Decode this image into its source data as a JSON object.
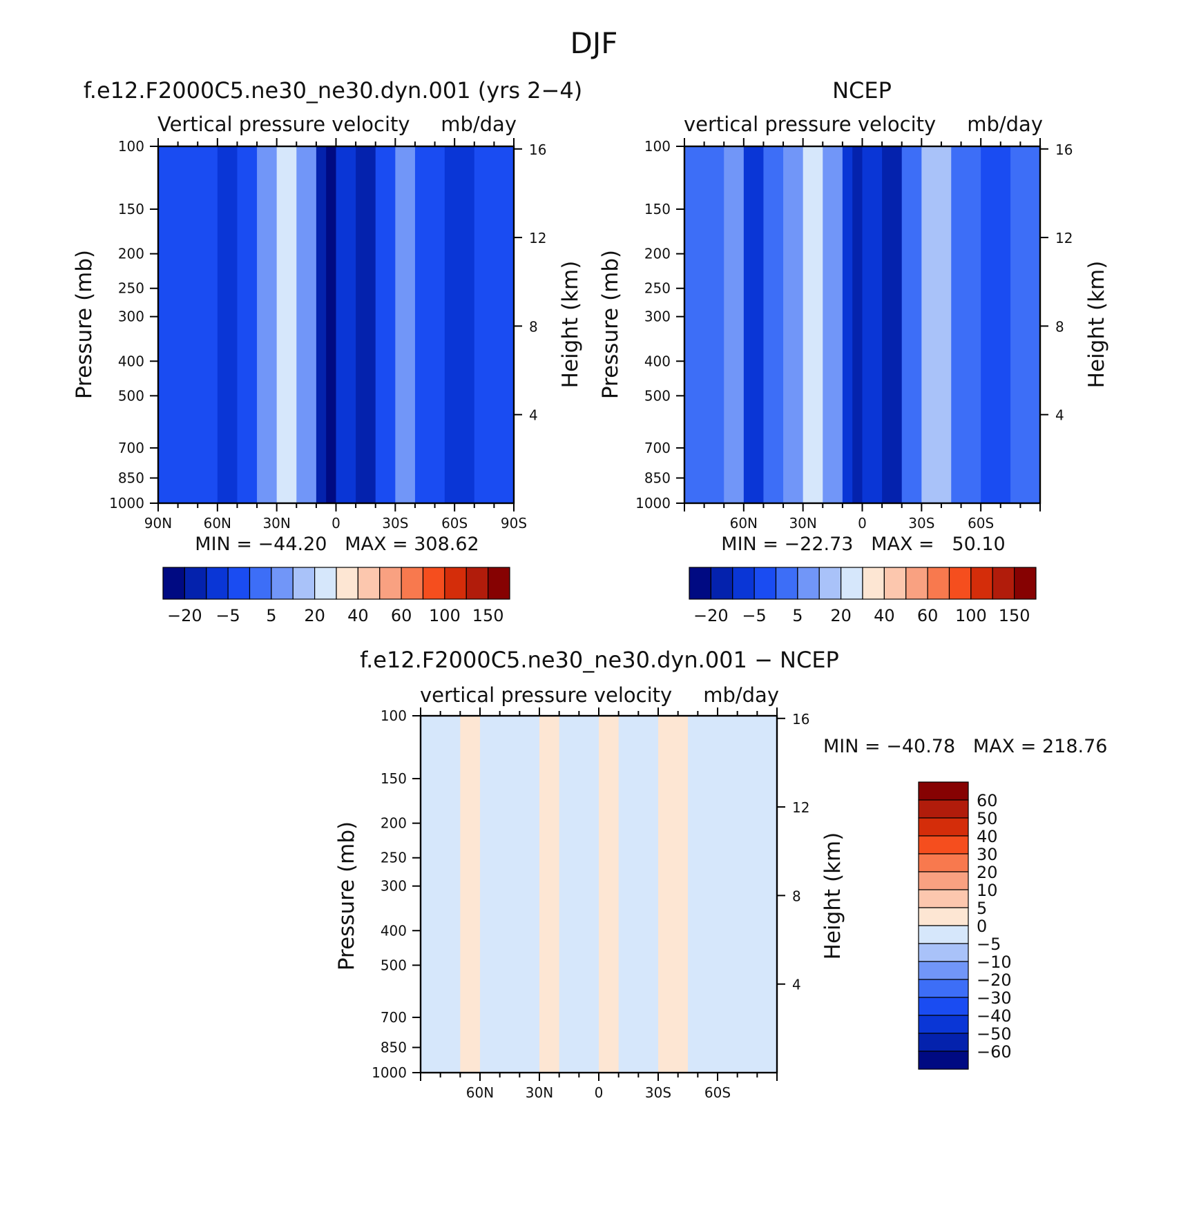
{
  "figure_title": "DJF",
  "colors": {
    "cmap15": [
      "#000a82",
      "#0422ad",
      "#0a36d6",
      "#1a4cf2",
      "#3d6ef7",
      "#7196f8",
      "#a9c2f9",
      "#d6e7fb",
      "#fde6d3",
      "#fcc7ae",
      "#f9a181",
      "#f8794e",
      "#f54e1e",
      "#d42d0a",
      "#b11c0b",
      "#860202"
    ],
    "diff": [
      "#000a82",
      "#0422ad",
      "#0a36d6",
      "#1a4cf2",
      "#3d6ef7",
      "#7196f8",
      "#a9c2f9",
      "#d6e7fb",
      "#fde6d3",
      "#fcc7ae",
      "#f9a181",
      "#f8794e",
      "#f54e1e",
      "#d42d0a",
      "#b11c0b",
      "#860202"
    ]
  },
  "chart_data": [
    {
      "type": "heatmap",
      "title": "f.e12.F2000C5.ne30_ne30.dyn.001 (yrs 2−4)",
      "left_label": "Vertical pressure velocity",
      "right_label": "mb/day",
      "ylabel": "Pressure (mb)",
      "ylabel_right": "Height (km)",
      "y_ticks": [
        "100",
        "150",
        "200",
        "250",
        "300",
        "400",
        "500",
        "700",
        "850",
        "1000"
      ],
      "y_tick_values": [
        100,
        150,
        200,
        250,
        300,
        400,
        500,
        700,
        850,
        1000
      ],
      "yr_ticks": [
        "16",
        "12",
        "8",
        "4"
      ],
      "yr_tick_values": [
        16,
        12,
        8,
        4
      ],
      "x_ticks": [
        "90N",
        "60N",
        "30N",
        "0",
        "30S",
        "60S",
        "90S"
      ],
      "x_tick_values": [
        90,
        60,
        30,
        0,
        -30,
        -60,
        -90
      ],
      "xlim": [
        90,
        -90
      ],
      "ylim": [
        100,
        1000
      ],
      "stats": "MIN = −44.20   MAX = 308.62",
      "colorbar_labels": [
        "−20",
        "−5",
        "5",
        "20",
        "40",
        "60",
        "100",
        "150"
      ],
      "bands": [
        {
          "lat": 90,
          "level": 3
        },
        {
          "lat": 80,
          "level": 3
        },
        {
          "lat": 70,
          "level": 3
        },
        {
          "lat": 60,
          "level": 2
        },
        {
          "lat": 50,
          "level": 3
        },
        {
          "lat": 40,
          "level": 5
        },
        {
          "lat": 30,
          "level": 7
        },
        {
          "lat": 20,
          "level": 5
        },
        {
          "lat": 10,
          "level": 1
        },
        {
          "lat": 5,
          "level": 0
        },
        {
          "lat": 0,
          "level": 2
        },
        {
          "lat": -10,
          "level": 1
        },
        {
          "lat": -20,
          "level": 3
        },
        {
          "lat": -30,
          "level": 5
        },
        {
          "lat": -40,
          "level": 3
        },
        {
          "lat": -55,
          "level": 2
        },
        {
          "lat": -70,
          "level": 3
        },
        {
          "lat": -90,
          "level": 3
        }
      ]
    },
    {
      "type": "heatmap",
      "title": "NCEP",
      "left_label": "vertical pressure velocity",
      "right_label": "mb/day",
      "ylabel": "Pressure (mb)",
      "ylabel_right": "Height (km)",
      "y_ticks": [
        "100",
        "150",
        "200",
        "250",
        "300",
        "400",
        "500",
        "700",
        "850",
        "1000"
      ],
      "y_tick_values": [
        100,
        150,
        200,
        250,
        300,
        400,
        500,
        700,
        850,
        1000
      ],
      "yr_ticks": [
        "16",
        "12",
        "8",
        "4"
      ],
      "yr_tick_values": [
        16,
        12,
        8,
        4
      ],
      "x_ticks": [
        "60N",
        "30N",
        "0",
        "30S",
        "60S"
      ],
      "x_tick_values": [
        60,
        30,
        0,
        -30,
        -60
      ],
      "xlim": [
        90,
        -90
      ],
      "ylim": [
        100,
        1000
      ],
      "stats": "MIN = −22.73   MAX =   50.10",
      "colorbar_labels": [
        "−20",
        "−5",
        "5",
        "20",
        "40",
        "60",
        "100",
        "150"
      ],
      "bands": [
        {
          "lat": 90,
          "level": 4
        },
        {
          "lat": 80,
          "level": 4
        },
        {
          "lat": 70,
          "level": 5
        },
        {
          "lat": 60,
          "level": 2
        },
        {
          "lat": 50,
          "level": 4
        },
        {
          "lat": 40,
          "level": 5
        },
        {
          "lat": 30,
          "level": 7
        },
        {
          "lat": 20,
          "level": 5
        },
        {
          "lat": 10,
          "level": 2
        },
        {
          "lat": 5,
          "level": 1
        },
        {
          "lat": 0,
          "level": 2
        },
        {
          "lat": -10,
          "level": 1
        },
        {
          "lat": -20,
          "level": 4
        },
        {
          "lat": -30,
          "level": 6
        },
        {
          "lat": -45,
          "level": 4
        },
        {
          "lat": -60,
          "level": 3
        },
        {
          "lat": -75,
          "level": 4
        },
        {
          "lat": -90,
          "level": 4
        }
      ]
    },
    {
      "type": "heatmap",
      "title": "f.e12.F2000C5.ne30_ne30.dyn.001 − NCEP",
      "left_label": "vertical pressure velocity",
      "right_label": "mb/day",
      "ylabel": "Pressure (mb)",
      "ylabel_right": "Height (km)",
      "y_ticks": [
        "100",
        "150",
        "200",
        "250",
        "300",
        "400",
        "500",
        "700",
        "850",
        "1000"
      ],
      "y_tick_values": [
        100,
        150,
        200,
        250,
        300,
        400,
        500,
        700,
        850,
        1000
      ],
      "yr_ticks": [
        "16",
        "12",
        "8",
        "4"
      ],
      "yr_tick_values": [
        16,
        12,
        8,
        4
      ],
      "x_ticks": [
        "60N",
        "30N",
        "0",
        "30S",
        "60S"
      ],
      "x_tick_values": [
        60,
        30,
        0,
        -30,
        -60
      ],
      "xlim": [
        90,
        -90
      ],
      "ylim": [
        100,
        1000
      ],
      "stats": "MIN = −40.78   MAX = 218.76",
      "colorbar_labels": [
        "60",
        "50",
        "40",
        "30",
        "20",
        "10",
        "5",
        "0",
        "−5",
        "−10",
        "−20",
        "−30",
        "−40",
        "−50",
        "−60"
      ],
      "bands": [
        {
          "lat": 90,
          "level": 7
        },
        {
          "lat": 80,
          "level": 7
        },
        {
          "lat": 70,
          "level": 8
        },
        {
          "lat": 60,
          "level": 7
        },
        {
          "lat": 50,
          "level": 7
        },
        {
          "lat": 40,
          "level": 7
        },
        {
          "lat": 30,
          "level": 8
        },
        {
          "lat": 20,
          "level": 7
        },
        {
          "lat": 10,
          "level": 7
        },
        {
          "lat": 0,
          "level": 8
        },
        {
          "lat": -10,
          "level": 7
        },
        {
          "lat": -20,
          "level": 7
        },
        {
          "lat": -30,
          "level": 8
        },
        {
          "lat": -45,
          "level": 7
        },
        {
          "lat": -60,
          "level": 7
        },
        {
          "lat": -75,
          "level": 7
        },
        {
          "lat": -90,
          "level": 8
        }
      ]
    }
  ]
}
